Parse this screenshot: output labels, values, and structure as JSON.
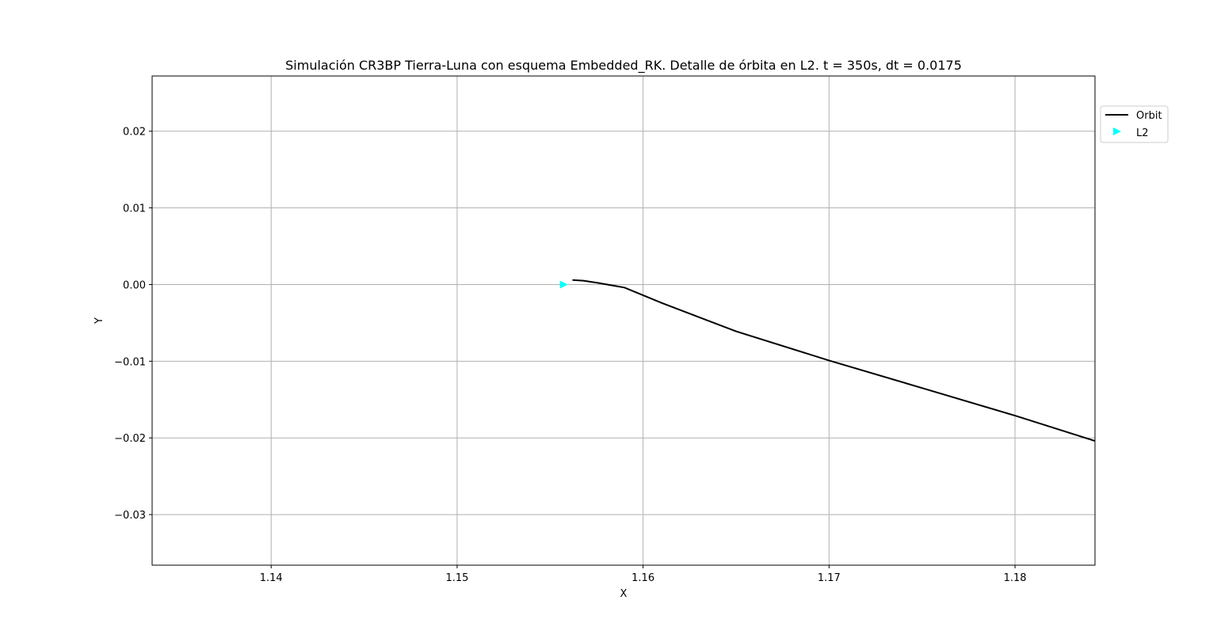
{
  "chart_data": {
    "type": "line",
    "title": "Simulación CR3BP Tierra-Luna con esquema Embedded_RK. Detalle de órbita en L2. t = 350s, dt = 0.0175",
    "xlabel": "X",
    "ylabel": "Y",
    "xlim": [
      1.1336,
      1.1843
    ],
    "ylim": [
      -0.0366,
      0.0272
    ],
    "grid": true,
    "legend_position": "upper-right-outside",
    "x_ticks": [
      1.14,
      1.15,
      1.16,
      1.17,
      1.18
    ],
    "x_tick_labels": [
      "1.14",
      "1.15",
      "1.16",
      "1.17",
      "1.18"
    ],
    "y_ticks": [
      0.02,
      0.01,
      0.0,
      -0.01,
      -0.02,
      -0.03
    ],
    "y_tick_labels": [
      "0.02",
      "0.01",
      "0.00",
      "−0.01",
      "−0.02",
      "−0.03"
    ],
    "series": [
      {
        "name": "Orbit",
        "kind": "line",
        "color": "#000000",
        "x": [
          1.1562,
          1.1568,
          1.1576,
          1.159,
          1.161,
          1.165,
          1.17,
          1.175,
          1.18,
          1.1843
        ],
        "y": [
          0.0006,
          0.0005,
          0.0002,
          -0.0004,
          -0.0024,
          -0.0061,
          -0.0099,
          -0.0135,
          -0.0171,
          -0.0204
        ]
      },
      {
        "name": "L2",
        "kind": "marker",
        "color": "#00ffff",
        "x": [
          1.1557
        ],
        "y": [
          0.0
        ]
      }
    ]
  }
}
